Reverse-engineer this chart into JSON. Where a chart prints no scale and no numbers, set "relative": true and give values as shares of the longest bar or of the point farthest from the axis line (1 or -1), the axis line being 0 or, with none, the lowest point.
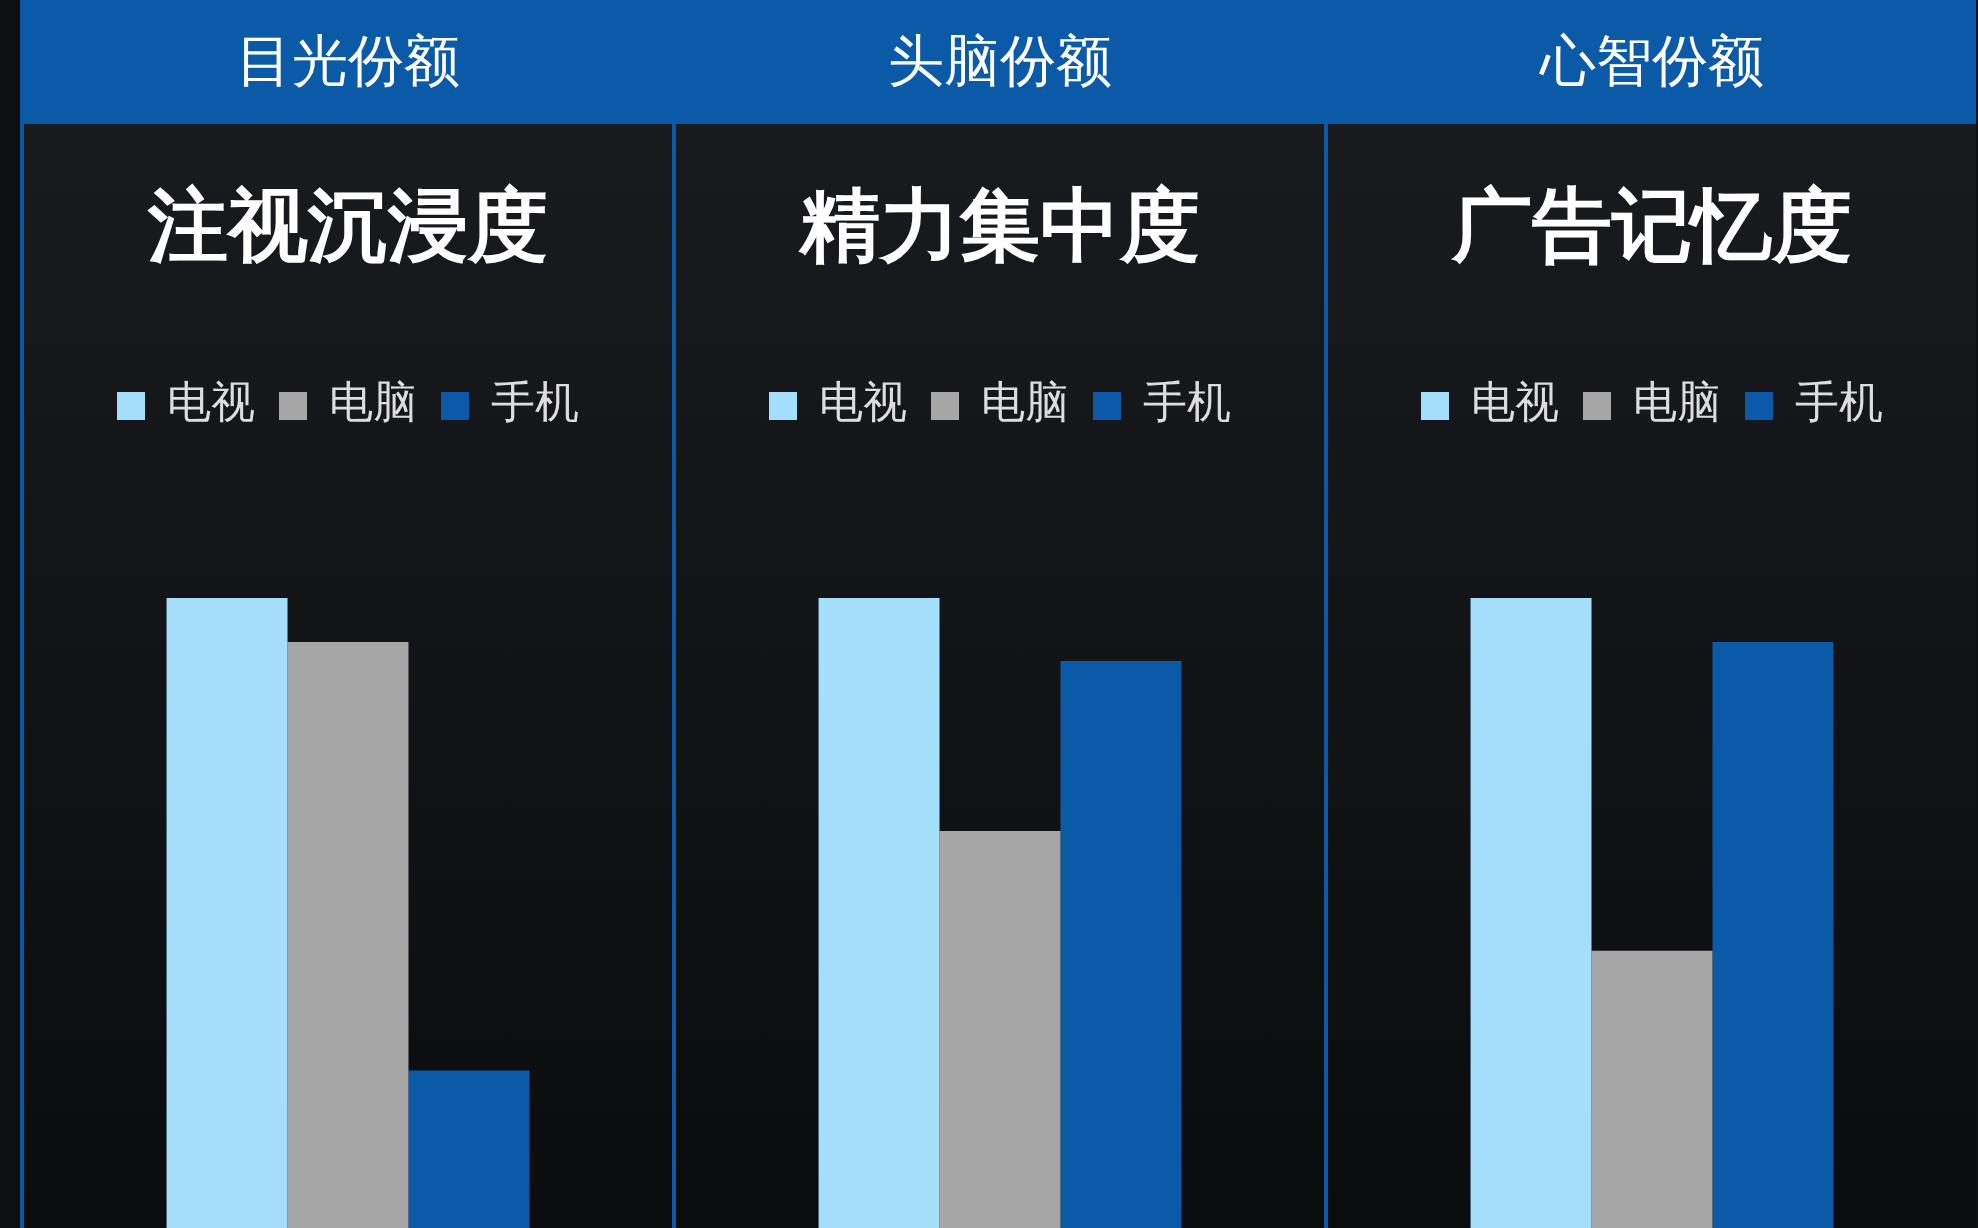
{
  "chart_data": [
    {
      "type": "bar",
      "title": "目光份额",
      "subtitle": "注视沉浸度",
      "categories": [
        null
      ],
      "relative": true,
      "legend": "top",
      "series": [
        {
          "name": "电视",
          "color": "#a3defa",
          "values": [
            1
          ]
        },
        {
          "name": "电脑",
          "color": "#a6a6a6",
          "values": [
            0.93
          ]
        },
        {
          "name": "手机",
          "color": "#0b5aa8",
          "values": [
            0.25
          ]
        }
      ]
    },
    {
      "type": "bar",
      "title": "头脑份额",
      "subtitle": "精力集中度",
      "categories": [
        null
      ],
      "relative": true,
      "legend": "top",
      "series": [
        {
          "name": "电视",
          "color": "#a3defa",
          "values": [
            1
          ]
        },
        {
          "name": "电脑",
          "color": "#a6a6a6",
          "values": [
            0.63
          ]
        },
        {
          "name": "手机",
          "color": "#0b5aa8",
          "values": [
            0.9
          ]
        }
      ]
    },
    {
      "type": "bar",
      "title": "心智份额",
      "subtitle": "广告记忆度",
      "categories": [
        null
      ],
      "relative": true,
      "legend": "top",
      "series": [
        {
          "name": "电视",
          "color": "#a3defa",
          "values": [
            1
          ]
        },
        {
          "name": "电脑",
          "color": "#a6a6a6",
          "values": [
            0.44
          ]
        },
        {
          "name": "手机",
          "color": "#0b5aa8",
          "values": [
            0.93
          ]
        }
      ]
    }
  ]
}
